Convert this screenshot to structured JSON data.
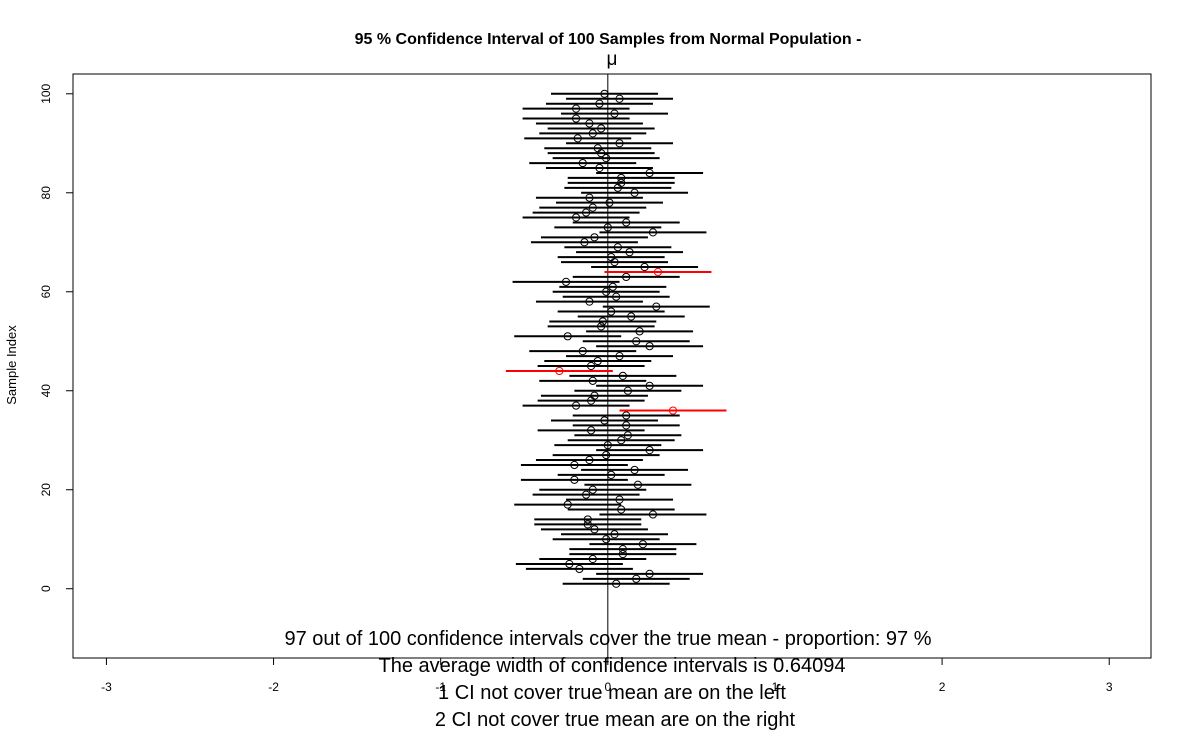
{
  "chart_data": {
    "type": "scatter",
    "title": "95 % Confidence Interval of 100  Samples from Normal Population -",
    "mu_label": "μ",
    "ylabel": "Sample Index",
    "xlim": [
      -3.2,
      3.25
    ],
    "ylim": [
      -14,
      104
    ],
    "xticks": [
      -3,
      -2,
      -1,
      0,
      1,
      2,
      3
    ],
    "yticks": [
      0,
      20,
      40,
      60,
      80,
      100
    ],
    "true_mean": 0,
    "ci_half_width": 0.32,
    "grid": false,
    "colors": {
      "cover": "#000000",
      "miss": "#ff0000"
    },
    "points": [
      {
        "y": 1,
        "mean": 0.05
      },
      {
        "y": 2,
        "mean": 0.17
      },
      {
        "y": 3,
        "mean": 0.25
      },
      {
        "y": 4,
        "mean": -0.17
      },
      {
        "y": 5,
        "mean": -0.23
      },
      {
        "y": 6,
        "mean": -0.09
      },
      {
        "y": 7,
        "mean": 0.09
      },
      {
        "y": 8,
        "mean": 0.09
      },
      {
        "y": 9,
        "mean": 0.21
      },
      {
        "y": 10,
        "mean": -0.01
      },
      {
        "y": 11,
        "mean": 0.04
      },
      {
        "y": 12,
        "mean": -0.08
      },
      {
        "y": 13,
        "mean": -0.12
      },
      {
        "y": 14,
        "mean": -0.12
      },
      {
        "y": 15,
        "mean": 0.27
      },
      {
        "y": 16,
        "mean": 0.08
      },
      {
        "y": 17,
        "mean": -0.24
      },
      {
        "y": 18,
        "mean": 0.07
      },
      {
        "y": 19,
        "mean": -0.13
      },
      {
        "y": 20,
        "mean": -0.09
      },
      {
        "y": 21,
        "mean": 0.18
      },
      {
        "y": 22,
        "mean": -0.2
      },
      {
        "y": 23,
        "mean": 0.02
      },
      {
        "y": 24,
        "mean": 0.16
      },
      {
        "y": 25,
        "mean": -0.2
      },
      {
        "y": 26,
        "mean": -0.11
      },
      {
        "y": 27,
        "mean": -0.01
      },
      {
        "y": 28,
        "mean": 0.25
      },
      {
        "y": 29,
        "mean": 0.0
      },
      {
        "y": 30,
        "mean": 0.08
      },
      {
        "y": 31,
        "mean": 0.12
      },
      {
        "y": 32,
        "mean": -0.1
      },
      {
        "y": 33,
        "mean": 0.11
      },
      {
        "y": 34,
        "mean": -0.02
      },
      {
        "y": 35,
        "mean": 0.11
      },
      {
        "y": 36,
        "mean": 0.39,
        "miss": true
      },
      {
        "y": 37,
        "mean": -0.19
      },
      {
        "y": 38,
        "mean": -0.1
      },
      {
        "y": 39,
        "mean": -0.08
      },
      {
        "y": 40,
        "mean": 0.12
      },
      {
        "y": 41,
        "mean": 0.25
      },
      {
        "y": 42,
        "mean": -0.09
      },
      {
        "y": 43,
        "mean": 0.09
      },
      {
        "y": 44,
        "mean": -0.29,
        "miss": true
      },
      {
        "y": 45,
        "mean": -0.1
      },
      {
        "y": 46,
        "mean": -0.06
      },
      {
        "y": 47,
        "mean": 0.07
      },
      {
        "y": 48,
        "mean": -0.15
      },
      {
        "y": 49,
        "mean": 0.25
      },
      {
        "y": 50,
        "mean": 0.17
      },
      {
        "y": 51,
        "mean": -0.24
      },
      {
        "y": 52,
        "mean": 0.19
      },
      {
        "y": 53,
        "mean": -0.04
      },
      {
        "y": 54,
        "mean": -0.03
      },
      {
        "y": 55,
        "mean": 0.14
      },
      {
        "y": 56,
        "mean": 0.02
      },
      {
        "y": 57,
        "mean": 0.29
      },
      {
        "y": 58,
        "mean": -0.11
      },
      {
        "y": 59,
        "mean": 0.05
      },
      {
        "y": 60,
        "mean": -0.01
      },
      {
        "y": 61,
        "mean": 0.03
      },
      {
        "y": 62,
        "mean": -0.25
      },
      {
        "y": 63,
        "mean": 0.11
      },
      {
        "y": 64,
        "mean": 0.3,
        "miss": true
      },
      {
        "y": 65,
        "mean": 0.22
      },
      {
        "y": 66,
        "mean": 0.04
      },
      {
        "y": 67,
        "mean": 0.02
      },
      {
        "y": 68,
        "mean": 0.13
      },
      {
        "y": 69,
        "mean": 0.06
      },
      {
        "y": 70,
        "mean": -0.14
      },
      {
        "y": 71,
        "mean": -0.08
      },
      {
        "y": 72,
        "mean": 0.27
      },
      {
        "y": 73,
        "mean": 0.0
      },
      {
        "y": 74,
        "mean": 0.11
      },
      {
        "y": 75,
        "mean": -0.19
      },
      {
        "y": 76,
        "mean": -0.13
      },
      {
        "y": 77,
        "mean": -0.09
      },
      {
        "y": 78,
        "mean": 0.01
      },
      {
        "y": 79,
        "mean": -0.11
      },
      {
        "y": 80,
        "mean": 0.16
      },
      {
        "y": 81,
        "mean": 0.06
      },
      {
        "y": 82,
        "mean": 0.08
      },
      {
        "y": 83,
        "mean": 0.08
      },
      {
        "y": 84,
        "mean": 0.25
      },
      {
        "y": 85,
        "mean": -0.05
      },
      {
        "y": 86,
        "mean": -0.15
      },
      {
        "y": 87,
        "mean": -0.01
      },
      {
        "y": 88,
        "mean": -0.04
      },
      {
        "y": 89,
        "mean": -0.06
      },
      {
        "y": 90,
        "mean": 0.07
      },
      {
        "y": 91,
        "mean": -0.18
      },
      {
        "y": 92,
        "mean": -0.09
      },
      {
        "y": 93,
        "mean": -0.04
      },
      {
        "y": 94,
        "mean": -0.11
      },
      {
        "y": 95,
        "mean": -0.19
      },
      {
        "y": 96,
        "mean": 0.04
      },
      {
        "y": 97,
        "mean": -0.19
      },
      {
        "y": 98,
        "mean": -0.05
      },
      {
        "y": 99,
        "mean": 0.07
      },
      {
        "y": 100,
        "mean": -0.02
      }
    ],
    "summary_lines": [
      "97 out of 100 confidence intervals cover the true mean - proportion: 97 %",
      "The average width of confidence intervals is 0.64094",
      "1 CI not cover true mean are on the left",
      "2 CI not cover true mean are on the right"
    ]
  }
}
